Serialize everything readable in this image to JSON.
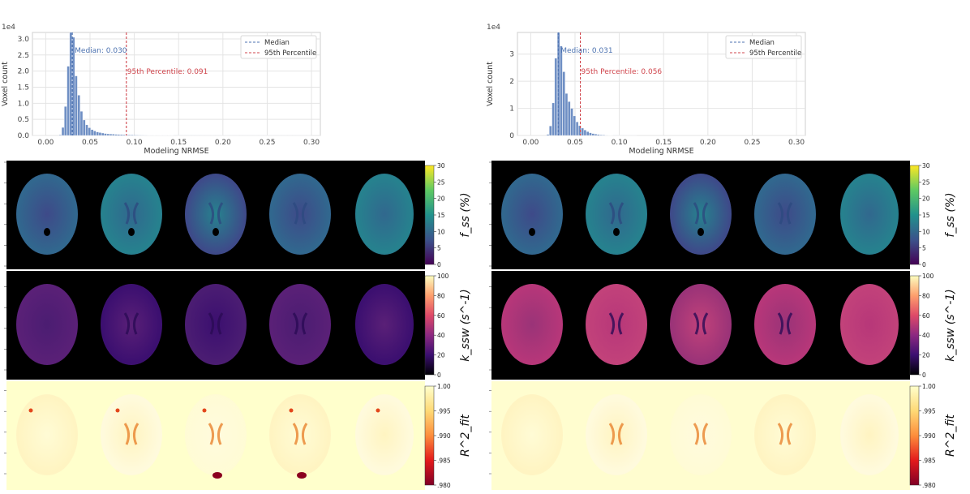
{
  "chart_data": [
    {
      "type": "bar",
      "xlabel": "Modeling NRMSE",
      "ylabel": "Voxel count",
      "y_multiplier": "1e4",
      "xlim": [
        -0.015,
        0.31
      ],
      "ylim": [
        0,
        3.2
      ],
      "xticks": [
        "0.00",
        "0.05",
        "0.10",
        "0.15",
        "0.20",
        "0.25",
        "0.30"
      ],
      "yticks": [
        "0.0",
        "0.5",
        "1.0",
        "1.5",
        "2.0",
        "2.5",
        "3.0"
      ],
      "ytick_values": [
        0.0,
        0.5,
        1.0,
        1.5,
        2.0,
        2.5,
        3.0
      ],
      "grid": true,
      "legend_position": "top-right",
      "legend": [
        "Median",
        "95th Percentile"
      ],
      "median": 0.03,
      "p95": 0.091,
      "median_label": "Median: 0.030",
      "p95_label": "95th Percentile: 0.091",
      "bin_width": 0.003,
      "bins_start": 0.0,
      "values": [
        0,
        0,
        0,
        0,
        0,
        0.02,
        0.25,
        0.9,
        2.15,
        3.2,
        3.05,
        1.85,
        1.25,
        0.75,
        0.48,
        0.33,
        0.24,
        0.18,
        0.14,
        0.11,
        0.09,
        0.075,
        0.06,
        0.05,
        0.045,
        0.04,
        0.035,
        0.03,
        0.027,
        0.024,
        0.021,
        0.019,
        0.017,
        0.015,
        0.013,
        0.012,
        0.011,
        0.01,
        0.009,
        0.008,
        0.007,
        0.006,
        0.006,
        0.005,
        0.005,
        0.004,
        0.004,
        0.004,
        0.003,
        0.003,
        0.003,
        0.003,
        0.002,
        0.002,
        0.002,
        0.002,
        0.002,
        0.002,
        0.002,
        0.001,
        0.001,
        0.001,
        0.001,
        0.001,
        0.001,
        0.001,
        0.001,
        0.001,
        0.001,
        0.001,
        0.001,
        0.001,
        0.001,
        0.001,
        0.001,
        0.001,
        0.001,
        0.001,
        0.001,
        0.001,
        0.001,
        0.001,
        0.001,
        0.001,
        0.001,
        0.001,
        0.001,
        0.001,
        0.001,
        0.001,
        0.001,
        0.001,
        0.001,
        0.001,
        0.001,
        0.001,
        0.001,
        0.001,
        0.001,
        0.001
      ]
    },
    {
      "type": "bar",
      "xlabel": "Modeling NRMSE",
      "ylabel": "Voxel count",
      "y_multiplier": "1e4",
      "xlim": [
        -0.015,
        0.31
      ],
      "ylim": [
        0,
        3.8
      ],
      "xticks": [
        "0.00",
        "0.05",
        "0.10",
        "0.15",
        "0.20",
        "0.25",
        "0.30"
      ],
      "yticks": [
        "0",
        "1",
        "2",
        "3"
      ],
      "ytick_values": [
        0,
        1,
        2,
        3
      ],
      "grid": true,
      "legend_position": "top-right",
      "legend": [
        "Median",
        "95th Percentile"
      ],
      "median": 0.031,
      "p95": 0.056,
      "median_label": "Median: 0.031",
      "p95_label": "95th Percentile: 0.056",
      "bin_width": 0.003,
      "bins_start": 0.0,
      "values": [
        0,
        0,
        0,
        0,
        0,
        0,
        0.04,
        0.35,
        1.2,
        2.85,
        3.85,
        3.3,
        2.35,
        1.55,
        1.25,
        1.0,
        0.72,
        0.5,
        0.36,
        0.27,
        0.2,
        0.14,
        0.1,
        0.07,
        0.05,
        0.035,
        0.025,
        0.018,
        0.012,
        0.008,
        0.006,
        0.004,
        0.003,
        0.002,
        0.002,
        0.001,
        0.001,
        0.001,
        0.001,
        0.001,
        0,
        0,
        0,
        0,
        0,
        0,
        0,
        0,
        0,
        0,
        0,
        0,
        0,
        0,
        0,
        0,
        0,
        0,
        0,
        0,
        0,
        0,
        0,
        0,
        0,
        0,
        0,
        0,
        0,
        0,
        0,
        0,
        0,
        0,
        0,
        0,
        0,
        0,
        0,
        0,
        0,
        0,
        0,
        0,
        0,
        0,
        0,
        0,
        0,
        0,
        0,
        0,
        0,
        0,
        0,
        0,
        0,
        0,
        0,
        0
      ]
    }
  ],
  "colors": {
    "bar": "#6f8fc4",
    "median_line": "#4c72b0",
    "p95_line": "#d0454c",
    "median_text": "#4c72b0",
    "p95_text": "#d0454c"
  },
  "colorbars": [
    {
      "label": "f_ss (%)",
      "ticks": [
        "0",
        "5",
        "10",
        "15",
        "20",
        "25",
        "30"
      ],
      "colormap": "viridis"
    },
    {
      "label": "k_ssw (s^-1)",
      "ticks": [
        "0",
        "20",
        "40",
        "60",
        "80",
        "100"
      ],
      "colormap": "magma"
    },
    {
      "label": "R^2_fit",
      "ticks": [
        ".980",
        ".985",
        ".990",
        ".995",
        "1.00"
      ],
      "colormap": "YlOrRd_r"
    }
  ],
  "map_rows": [
    "fss",
    "kssw",
    "r2fit"
  ]
}
